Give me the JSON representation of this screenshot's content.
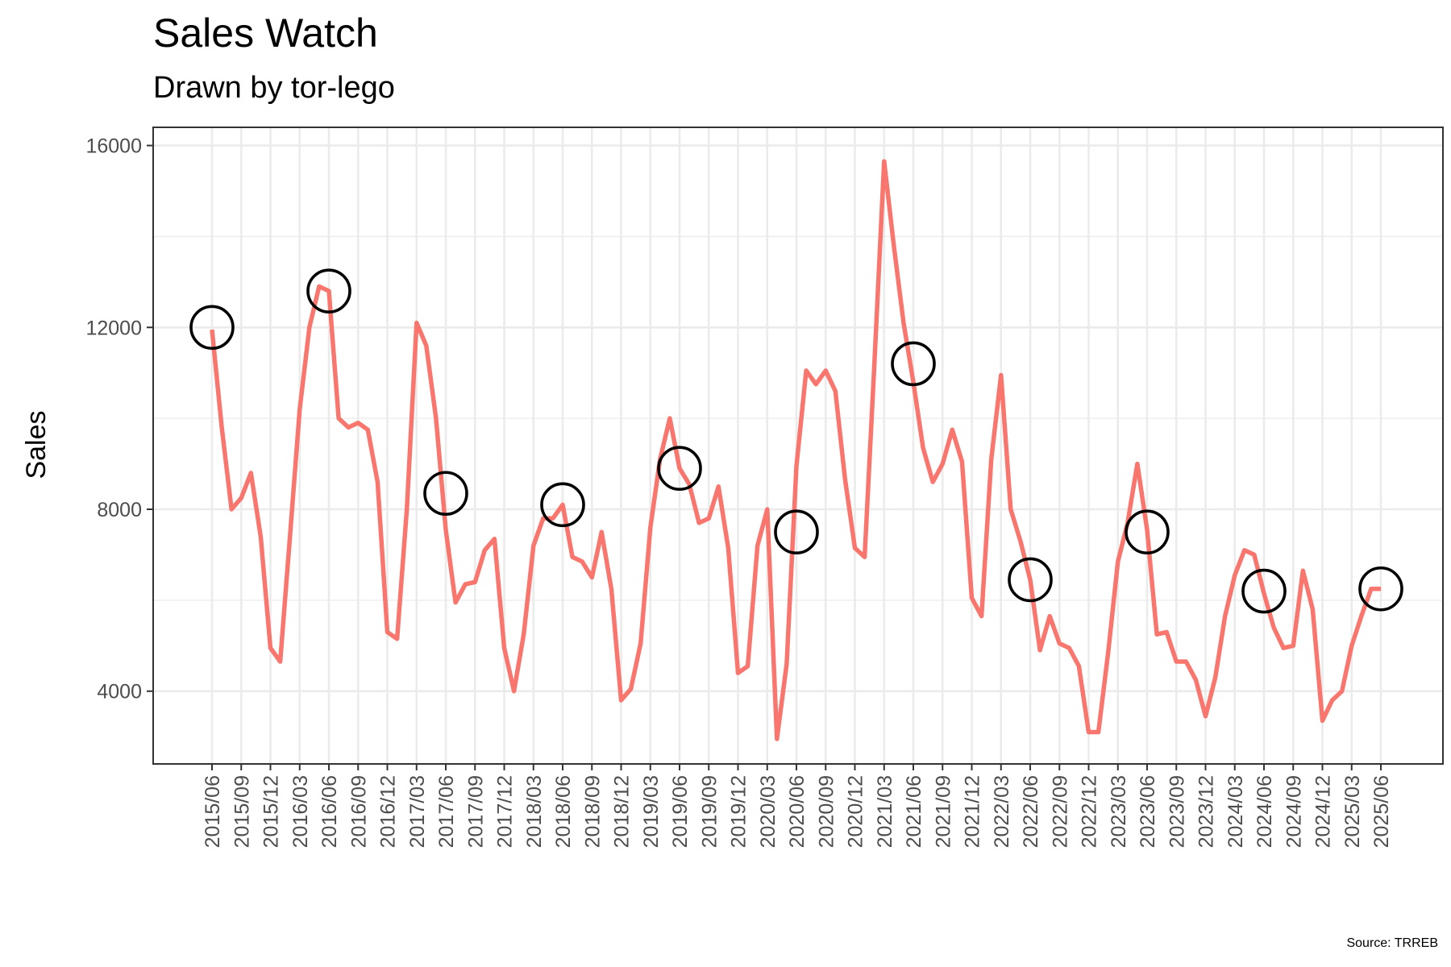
{
  "chart_data": {
    "type": "line",
    "title": "Sales Watch",
    "subtitle": "Drawn by tor-lego",
    "caption": "Source: TRREB",
    "xlabel": "",
    "ylabel": "Sales",
    "ylim": [
      2400,
      16400
    ],
    "yticks": [
      4000,
      8000,
      12000,
      16000
    ],
    "grid": true,
    "legend": "none",
    "colors": {
      "line": "#F8766D",
      "marker": "#000000",
      "grid": "#EBEBEB",
      "panel_border": "#333333"
    },
    "x_start": "2015/06",
    "xtick_labels": [
      "2015/06",
      "2015/09",
      "2015/12",
      "2016/03",
      "2016/06",
      "2016/09",
      "2016/12",
      "2017/03",
      "2017/06",
      "2017/09",
      "2017/12",
      "2018/03",
      "2018/06",
      "2018/09",
      "2018/12",
      "2019/03",
      "2019/06",
      "2019/09",
      "2019/12",
      "2020/03",
      "2020/06",
      "2020/09",
      "2020/12",
      "2021/03",
      "2021/06",
      "2021/09",
      "2021/12",
      "2022/03",
      "2022/06",
      "2022/09",
      "2022/12",
      "2023/03",
      "2023/06",
      "2023/09",
      "2023/12",
      "2024/03",
      "2024/06",
      "2024/09",
      "2024/12",
      "2025/03",
      "2025/06"
    ],
    "values": [
      11950,
      9800,
      8000,
      8250,
      8800,
      7400,
      4950,
      4650,
      7400,
      10200,
      12000,
      12900,
      12800,
      10000,
      9800,
      9900,
      9750,
      8600,
      5300,
      5150,
      8000,
      12100,
      11600,
      10000,
      7550,
      5950,
      6350,
      6400,
      7100,
      7350,
      4950,
      4000,
      5250,
      7200,
      7800,
      7800,
      8100,
      6950,
      6850,
      6500,
      7500,
      6250,
      3800,
      4050,
      5050,
      7600,
      9100,
      10000,
      8900,
      8550,
      7700,
      7800,
      8500,
      7150,
      4400,
      4550,
      7200,
      8000,
      2950,
      4600,
      8950,
      11050,
      10750,
      11050,
      10600,
      8650,
      7150,
      6950,
      11200,
      15650,
      13800,
      12100,
      10800,
      9350,
      8600,
      9000,
      9750,
      9050,
      6050,
      5650,
      9100,
      10950,
      8000,
      7300,
      6450,
      4900,
      5650,
      5050,
      4950,
      4550,
      3100,
      3100,
      4850,
      6850,
      7700,
      9000,
      7550,
      5250,
      5300,
      4650,
      4650,
      4250,
      3450,
      4300,
      5650,
      6550,
      7100,
      7000,
      6150,
      5400,
      4950,
      5000,
      6650,
      5800,
      3350,
      3800,
      4000,
      5000,
      5650,
      6250,
      6250
    ],
    "circled_points": [
      {
        "label": "2015/06",
        "value": 12000
      },
      {
        "label": "2016/06",
        "value": 12800
      },
      {
        "label": "2017/06",
        "value": 8350
      },
      {
        "label": "2018/06",
        "value": 8100
      },
      {
        "label": "2019/06",
        "value": 8900
      },
      {
        "label": "2020/06",
        "value": 7500
      },
      {
        "label": "2021/06",
        "value": 11200
      },
      {
        "label": "2022/06",
        "value": 6450
      },
      {
        "label": "2023/06",
        "value": 7500
      },
      {
        "label": "2024/06",
        "value": 6200
      },
      {
        "label": "2025/06",
        "value": 6250
      }
    ]
  }
}
